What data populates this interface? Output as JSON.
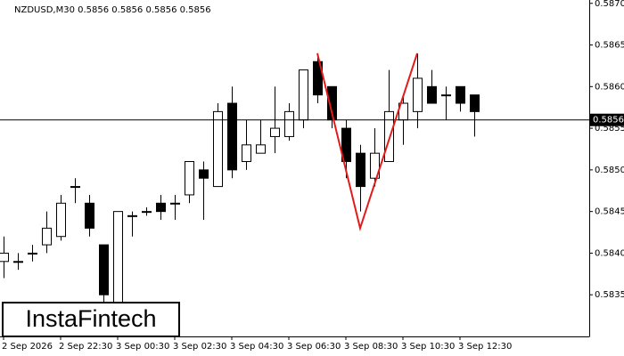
{
  "chart_data": {
    "type": "candlestick",
    "title": "NZDUSD,M30  0.5856 0.5856 0.5856 0.5856",
    "logo": "InstaFintech",
    "categories": [
      "2 Sep 2026",
      null,
      null,
      null,
      "2 Sep 22:30",
      null,
      null,
      null,
      "3 Sep 00:30",
      null,
      null,
      null,
      "3 Sep 02:30",
      null,
      null,
      null,
      "3 Sep 04:30",
      null,
      null,
      null,
      "3 Sep 06:30",
      null,
      null,
      null,
      "3 Sep 08:30",
      null,
      null,
      null,
      "3 Sep 10:30",
      null,
      null,
      null,
      "3 Sep 12:30",
      null
    ],
    "open": [
      0.5839,
      0.5839,
      0.584,
      0.5841,
      0.5842,
      0.5848,
      0.5846,
      0.5841,
      0.5834,
      0.58445,
      0.5845,
      0.5846,
      0.5846,
      0.5847,
      0.585,
      0.5848,
      0.5858,
      0.5851,
      0.5852,
      0.5854,
      0.5854,
      0.5856,
      0.5863,
      0.586,
      0.5855,
      0.5852,
      0.5849,
      0.5851,
      0.5856,
      0.5857,
      0.586,
      0.5859,
      0.586,
      0.5859
    ],
    "high": [
      0.5842,
      0.584,
      0.5841,
      0.5845,
      0.5847,
      0.5849,
      0.5847,
      0.5841,
      0.5845,
      0.5845,
      0.58455,
      0.5847,
      0.5847,
      0.5851,
      0.5851,
      0.5858,
      0.586,
      0.5856,
      0.5856,
      0.586,
      0.5858,
      0.5862,
      0.5864,
      0.586,
      0.5856,
      0.5853,
      0.5855,
      0.5862,
      0.5859,
      0.5864,
      0.5862,
      0.586,
      0.586,
      0.5859
    ],
    "low": [
      0.5837,
      0.5838,
      0.5839,
      0.584,
      0.58415,
      0.5846,
      0.5842,
      0.5834,
      0.5832,
      0.5842,
      0.58445,
      0.5844,
      0.5844,
      0.5846,
      0.5844,
      0.5848,
      0.5849,
      0.585,
      0.5852,
      0.5852,
      0.58535,
      0.5855,
      0.5858,
      0.5855,
      0.5849,
      0.5845,
      0.5848,
      0.5851,
      0.5853,
      0.5855,
      0.5858,
      0.5856,
      0.5857,
      0.5854
    ],
    "close": [
      0.584,
      0.5839,
      0.584,
      0.5843,
      0.5846,
      0.5848,
      0.5843,
      0.5835,
      0.5845,
      0.58445,
      0.5845,
      0.5845,
      0.5846,
      0.5851,
      0.5849,
      0.5857,
      0.585,
      0.5853,
      0.5853,
      0.5855,
      0.5857,
      0.5862,
      0.5859,
      0.5856,
      0.5851,
      0.5848,
      0.5852,
      0.5857,
      0.5858,
      0.5861,
      0.5858,
      0.5859,
      0.5858,
      0.5857
    ],
    "up_color": "#ffffff",
    "down_color": "#000000",
    "ylim": [
      0.583,
      0.58704
    ],
    "yticks": [
      {
        "value": 0.587,
        "label": "0.5870"
      },
      0.5865,
      {
        "value": 0.586,
        "label": "0.5860"
      },
      0.5855,
      {
        "value": 0.585,
        "label": "0.5850"
      },
      0.5845,
      {
        "value": 0.584,
        "label": "0.5840"
      },
      0.5835
    ],
    "current_price": {
      "value": 0.5856,
      "label": "0.5856"
    },
    "pattern": {
      "color": "#e41a1a",
      "x": [
        22,
        25,
        29
      ],
      "values": [
        0.5864,
        0.5843,
        0.5864
      ]
    }
  }
}
